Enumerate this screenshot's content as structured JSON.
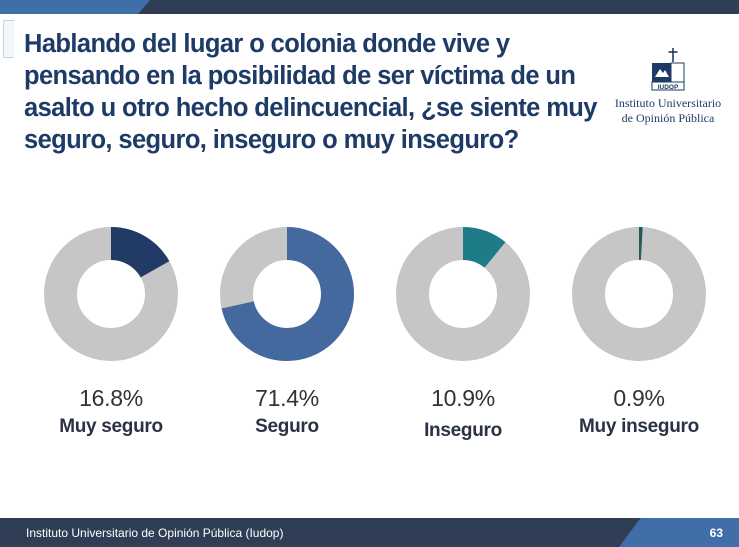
{
  "question": "Hablando del lugar o colonia donde vive y pensando en la posibilidad de ser víctima de un asalto u otro hecho delincuencial, ¿se siente muy seguro, seguro, inseguro o muy inseguro?",
  "logo": {
    "line1": "Instituto Universitario",
    "line2": "de Opinión Pública",
    "icon": "iudop-logo-icon"
  },
  "colors": {
    "header": "#2f3e55",
    "accent": "#3f6ea8",
    "title": "#1e3a66",
    "track": "#c6c6c6"
  },
  "chart_data": {
    "type": "pie",
    "variant": "donut",
    "unit": "%",
    "categories": [
      "Muy seguro",
      "Seguro",
      "Inseguro",
      "Muy inseguro"
    ],
    "values": [
      16.8,
      71.4,
      10.9,
      0.9
    ],
    "value_labels": [
      "16.8%",
      "71.4%",
      "10.9%",
      "0.9%"
    ],
    "colors": [
      "#213a66",
      "#43699f",
      "#1e7c88",
      "#1f5c5c"
    ],
    "track_color": "#c6c6c6"
  },
  "footer": {
    "text": "Instituto Universitario de Opinión Pública (Iudop)",
    "page": "63"
  }
}
